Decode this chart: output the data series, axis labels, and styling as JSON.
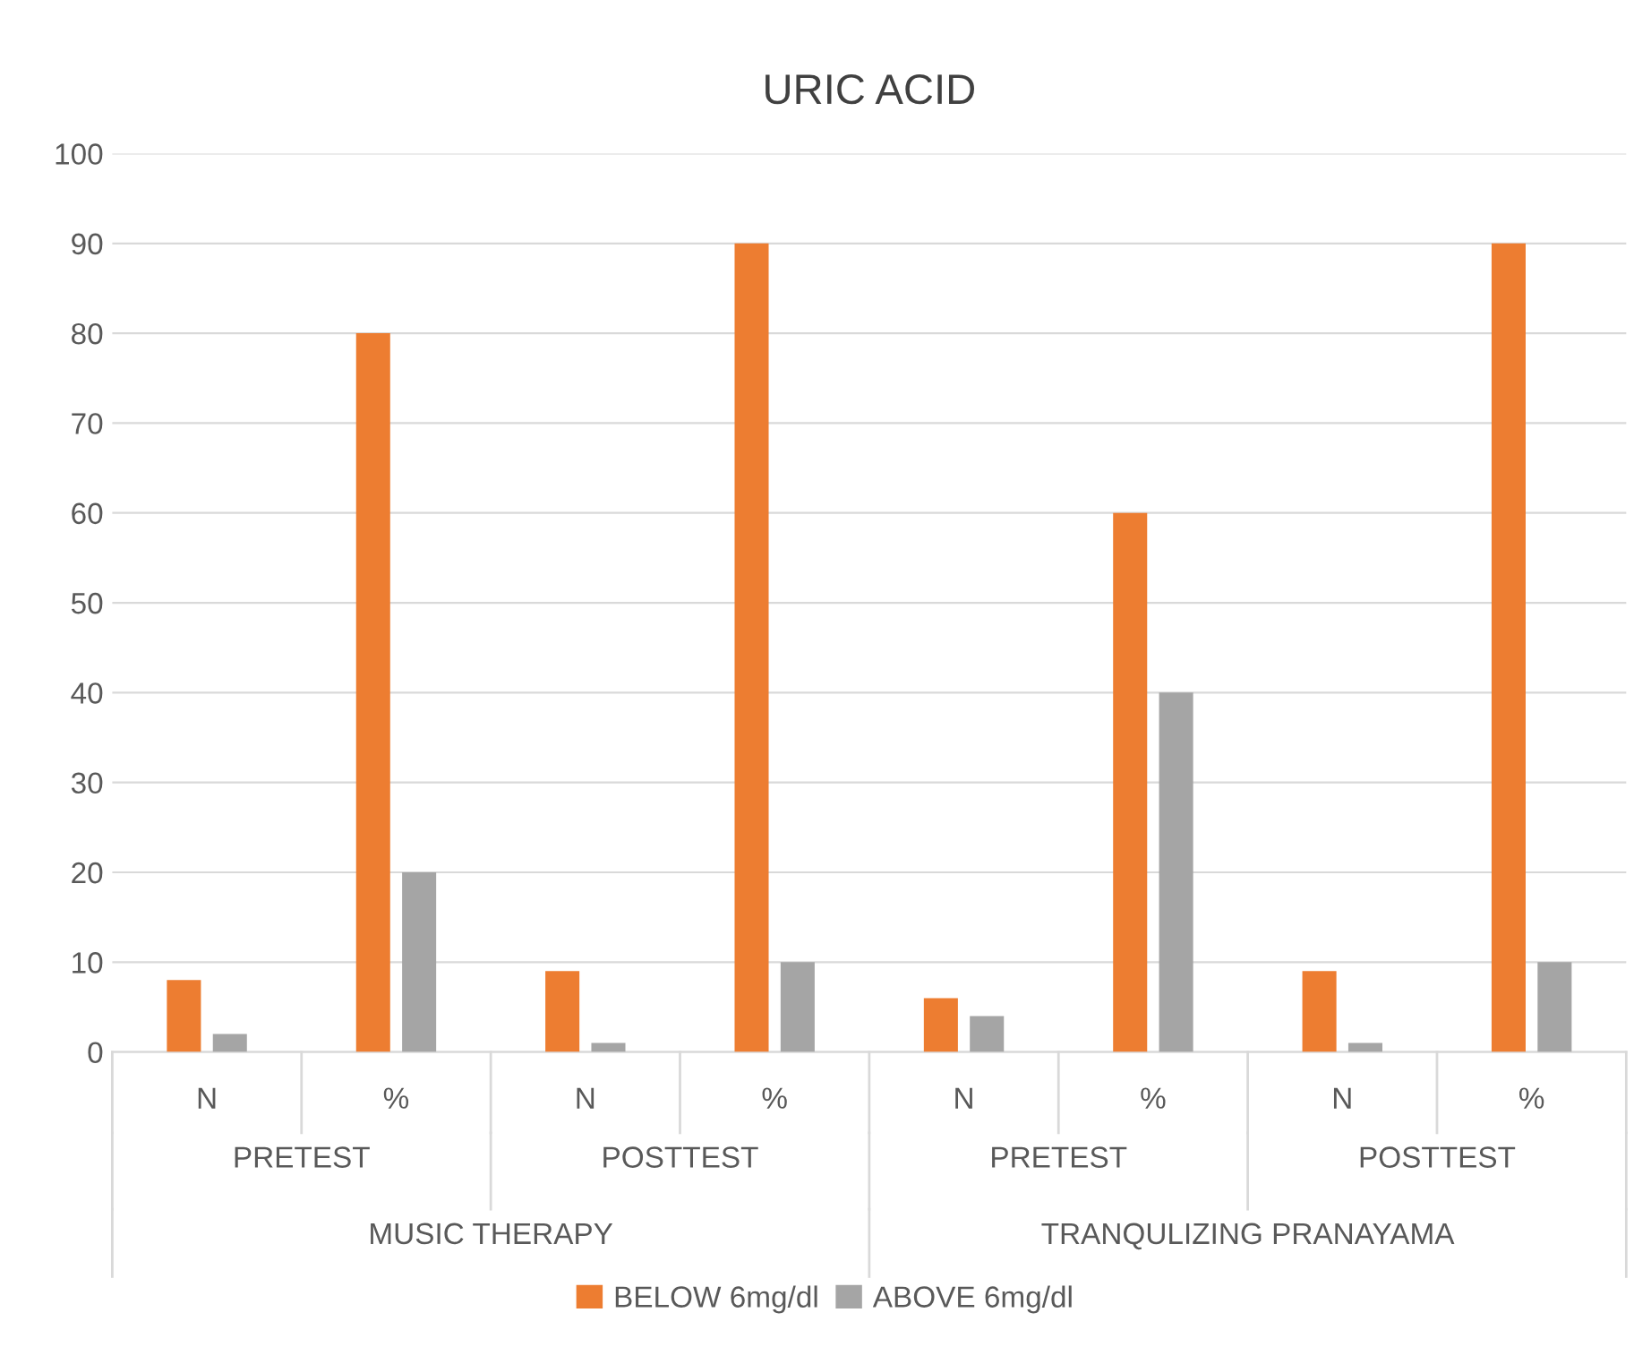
{
  "chart_data": {
    "type": "bar",
    "title": "URIC ACID",
    "categories": [
      "N",
      "%",
      "N",
      "%",
      "N",
      "%",
      "N",
      "%"
    ],
    "series": [
      {
        "name": "BELOW 6mg/dl",
        "color": "#ed7d31",
        "values": [
          8,
          80,
          9,
          90,
          6,
          60,
          9,
          90
        ]
      },
      {
        "name": "ABOVE 6mg/dl",
        "color": "#a5a5a5",
        "values": [
          2,
          20,
          1,
          10,
          4,
          40,
          1,
          10
        ]
      }
    ],
    "annotations": [
      "PRETEST",
      "POSTTEST",
      "PRETEST",
      "POSTTEST",
      "MUSIC THERAPY",
      "TRANQULIZING PRANAYAMA"
    ],
    "ylim": [
      0,
      100
    ],
    "yticks": [
      0,
      10,
      20,
      30,
      40,
      50,
      60,
      70,
      80,
      90,
      100
    ],
    "grid": "y",
    "legend": "bottom"
  }
}
